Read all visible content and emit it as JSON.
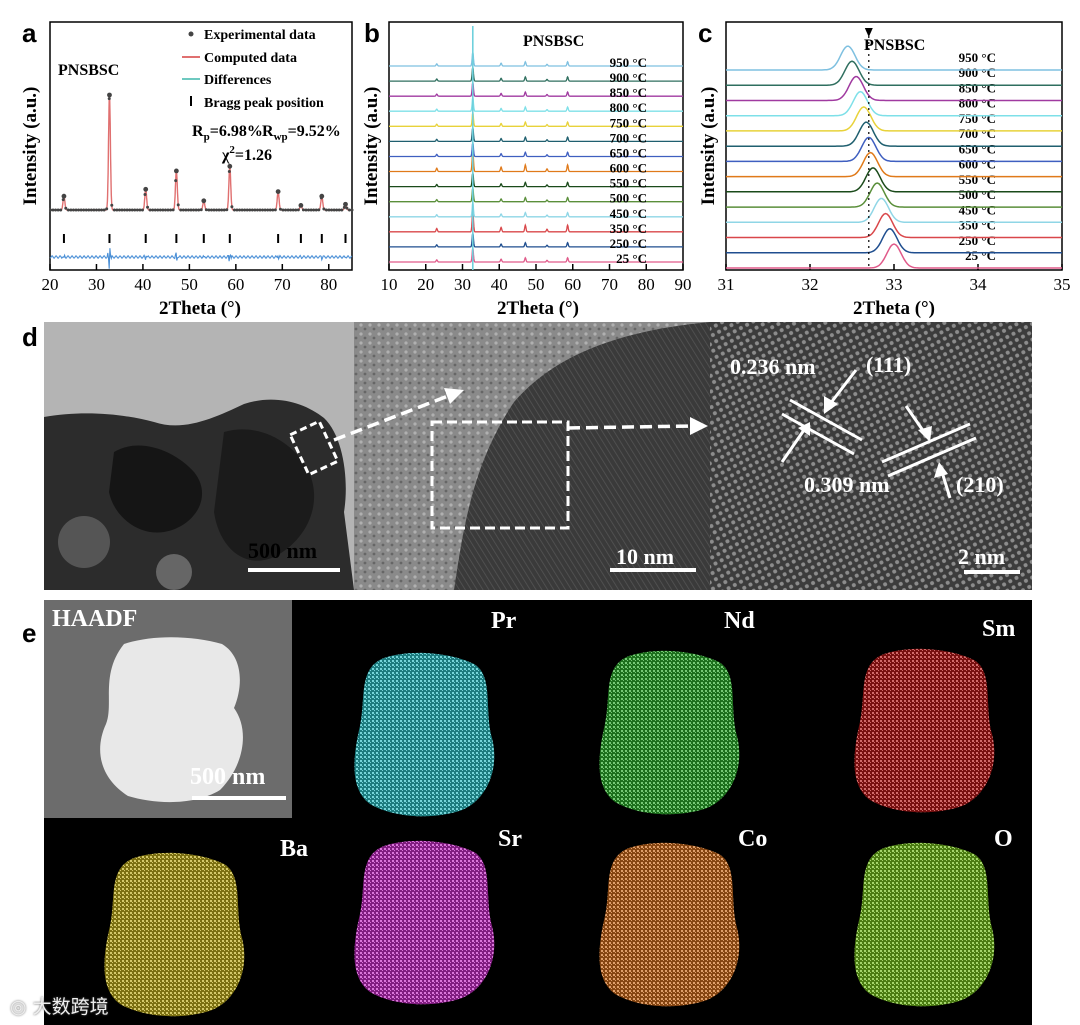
{
  "figure": {
    "panel_labels": {
      "a": "a",
      "b": "b",
      "c": "c",
      "d": "d",
      "e": "e"
    },
    "watermark": "大数跨境",
    "d": {
      "scale_low": "500 nm",
      "scale_mid": "10 nm",
      "scale_high": "2 nm",
      "d_spacing_1": "0.236 nm",
      "plane_1": "(111)",
      "d_spacing_2": "0.309 nm",
      "plane_2": "(210)"
    },
    "e": {
      "haadf_label": "HAADF",
      "haadf_scale": "500 nm",
      "maps": [
        {
          "element": "Pr",
          "color": "#2fc8cf"
        },
        {
          "element": "Nd",
          "color": "#2fb52f"
        },
        {
          "element": "Sm",
          "color": "#c21a1a"
        },
        {
          "element": "Ba",
          "color": "#c9b51d"
        },
        {
          "element": "Sr",
          "color": "#d12fd1"
        },
        {
          "element": "Co",
          "color": "#d9721c"
        },
        {
          "element": "O",
          "color": "#79c81e"
        }
      ]
    }
  },
  "chart_data": [
    {
      "type": "line",
      "panel": "a",
      "title": "PNSBSC",
      "xlabel": "2Theta (°)",
      "ylabel": "Intensity (a.u.)",
      "xlim": [
        20,
        85
      ],
      "xticks": [
        20,
        30,
        40,
        50,
        60,
        70,
        80
      ],
      "legend": [
        "Experimental data",
        "Computed data",
        "Differences",
        "Bragg peak position"
      ],
      "rp": "6.98%",
      "rwp": "9.52%",
      "chi2": "1.26",
      "stats": {
        "rp_label": "R",
        "rp_sub": "p",
        "rwp_label": "R",
        "rwp_sub": "wp",
        "chi_label": "χ",
        "chi_sup": "2"
      },
      "peaks": [
        {
          "x": 23.0,
          "h": 0.12
        },
        {
          "x": 32.8,
          "h": 1.0
        },
        {
          "x": 40.6,
          "h": 0.18
        },
        {
          "x": 47.2,
          "h": 0.34
        },
        {
          "x": 53.1,
          "h": 0.08
        },
        {
          "x": 58.7,
          "h": 0.38
        },
        {
          "x": 69.1,
          "h": 0.16
        },
        {
          "x": 74.0,
          "h": 0.04
        },
        {
          "x": 78.5,
          "h": 0.12
        },
        {
          "x": 83.6,
          "h": 0.05
        }
      ],
      "bragg_positions": [
        23.0,
        32.8,
        40.6,
        47.2,
        53.1,
        58.7,
        69.1,
        74.0,
        78.5,
        83.6
      ],
      "colors": {
        "experimental": "#444444",
        "computed": "#e07070",
        "differences": "#6ec9c0",
        "bragg": "#000000",
        "diff_line": "#4a8fd6"
      }
    },
    {
      "type": "line",
      "panel": "b",
      "title": "PNSBSC",
      "xlabel": "2Theta (°)",
      "ylabel": "Intensity (a.u.)",
      "xlim": [
        10,
        90
      ],
      "xticks": [
        10,
        20,
        30,
        40,
        50,
        60,
        70,
        80,
        90
      ],
      "peaks": [
        23.0,
        32.8,
        40.5,
        47.1,
        53.0,
        58.6
      ],
      "peak_heights": [
        0.15,
        1.0,
        0.2,
        0.3,
        0.12,
        0.3
      ],
      "series": [
        {
          "name": "25 °C",
          "color": "#e05a8a"
        },
        {
          "name": "250 °C",
          "color": "#1f4e8f"
        },
        {
          "name": "350 °C",
          "color": "#d9474a"
        },
        {
          "name": "450 °C",
          "color": "#8fd6e6"
        },
        {
          "name": "500 °C",
          "color": "#5a8f3a"
        },
        {
          "name": "550 °C",
          "color": "#1a4a1a"
        },
        {
          "name": "600 °C",
          "color": "#e07a1a"
        },
        {
          "name": "650 °C",
          "color": "#3f5fc0"
        },
        {
          "name": "700 °C",
          "color": "#1f5f6f"
        },
        {
          "name": "750 °C",
          "color": "#e8d23a"
        },
        {
          "name": "800 °C",
          "color": "#7ee0e8"
        },
        {
          "name": "850 °C",
          "color": "#a03aa0"
        },
        {
          "name": "900 °C",
          "color": "#2f6f5f"
        },
        {
          "name": "950 °C",
          "color": "#7ec0e0"
        }
      ]
    },
    {
      "type": "line",
      "panel": "c",
      "title": "PNSBSC",
      "xlabel": "2Theta (°)",
      "ylabel": "Intensity (a.u.)",
      "xlim": [
        31,
        35
      ],
      "xticks": [
        31,
        32,
        33,
        34,
        35
      ],
      "reference_x": 32.7,
      "series": [
        {
          "name": "25 °C",
          "color": "#e05a8a",
          "center": 33.0
        },
        {
          "name": "250 °C",
          "color": "#1f4e8f",
          "center": 32.95
        },
        {
          "name": "350 °C",
          "color": "#d9474a",
          "center": 32.9
        },
        {
          "name": "450 °C",
          "color": "#8fd6e6",
          "center": 32.85
        },
        {
          "name": "500 °C",
          "color": "#5a8f3a",
          "center": 32.8
        },
        {
          "name": "550 °C",
          "color": "#1a4a1a",
          "center": 32.75
        },
        {
          "name": "600 °C",
          "color": "#e07a1a",
          "center": 32.72
        },
        {
          "name": "650 °C",
          "color": "#3f5fc0",
          "center": 32.7
        },
        {
          "name": "700 °C",
          "color": "#1f5f6f",
          "center": 32.67
        },
        {
          "name": "750 °C",
          "color": "#e8d23a",
          "center": 32.64
        },
        {
          "name": "800 °C",
          "color": "#7ee0e8",
          "center": 32.6
        },
        {
          "name": "850 °C",
          "color": "#a03aa0",
          "center": 32.55
        },
        {
          "name": "900 °C",
          "color": "#2f6f5f",
          "center": 32.5
        },
        {
          "name": "950 °C",
          "color": "#7ec0e0",
          "center": 32.45
        }
      ]
    }
  ]
}
